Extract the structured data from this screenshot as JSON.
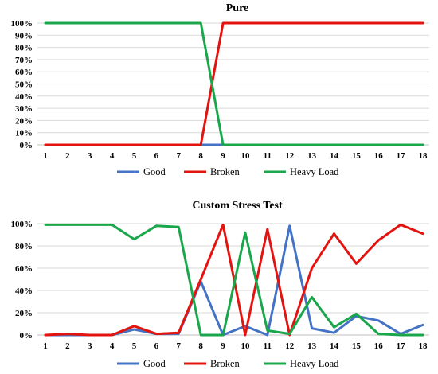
{
  "chart_data": [
    {
      "type": "line",
      "title": "Pure",
      "xlabel": "",
      "ylabel": "",
      "categories": [
        "1",
        "2",
        "3",
        "4",
        "5",
        "6",
        "7",
        "8",
        "9",
        "10",
        "11",
        "12",
        "13",
        "14",
        "15",
        "16",
        "17",
        "18"
      ],
      "y_ticks": [
        "0%",
        "10%",
        "20%",
        "30%",
        "40%",
        "50%",
        "60%",
        "70%",
        "80%",
        "90%",
        "100%"
      ],
      "ylim": [
        0,
        100
      ],
      "grid": true,
      "legend_position": "bottom",
      "series": [
        {
          "name": "Good",
          "color": "#4472c4",
          "values": [
            0,
            0,
            0,
            0,
            0,
            0,
            0,
            0,
            0,
            0,
            0,
            0,
            0,
            0,
            0,
            0,
            0,
            0
          ]
        },
        {
          "name": "Broken",
          "color": "#e3140f",
          "values": [
            0,
            0,
            0,
            0,
            0,
            0,
            0,
            0,
            100,
            100,
            100,
            100,
            100,
            100,
            100,
            100,
            100,
            100
          ]
        },
        {
          "name": "Heavy Load",
          "color": "#1aa64a",
          "values": [
            100,
            100,
            100,
            100,
            100,
            100,
            100,
            100,
            0,
            0,
            0,
            0,
            0,
            0,
            0,
            0,
            0,
            0
          ]
        }
      ]
    },
    {
      "type": "line",
      "title": "Custom Stress Test",
      "xlabel": "",
      "ylabel": "",
      "categories": [
        "1",
        "2",
        "3",
        "4",
        "5",
        "6",
        "7",
        "8",
        "9",
        "10",
        "11",
        "12",
        "13",
        "14",
        "15",
        "16",
        "17",
        "18"
      ],
      "y_ticks": [
        "0%",
        "20%",
        "40%",
        "60%",
        "80%",
        "100%"
      ],
      "ylim": [
        0,
        100
      ],
      "grid": true,
      "legend_position": "bottom",
      "series": [
        {
          "name": "Good",
          "color": "#4472c4",
          "values": [
            0,
            0,
            0,
            0,
            5,
            1,
            1,
            48,
            0,
            8,
            0,
            98,
            6,
            2,
            17,
            13,
            1,
            9
          ]
        },
        {
          "name": "Broken",
          "color": "#e3140f",
          "values": [
            0,
            1,
            0,
            0,
            8,
            1,
            2,
            50,
            99,
            0,
            95,
            0,
            60,
            91,
            64,
            85,
            99,
            91
          ]
        },
        {
          "name": "Heavy Load",
          "color": "#1aa64a",
          "values": [
            99,
            99,
            99,
            99,
            86,
            98,
            97,
            0,
            0,
            92,
            4,
            1,
            34,
            7,
            19,
            1,
            0,
            0
          ]
        }
      ]
    }
  ]
}
